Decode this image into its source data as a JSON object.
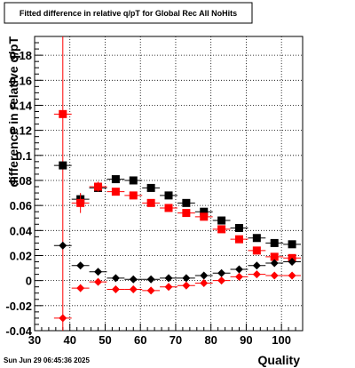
{
  "chart_data": {
    "type": "scatter",
    "title": "Fitted difference in relative q/pT for Global Rec All NoHits",
    "xlabel": "Quality",
    "ylabel": "difference in relative q/pT",
    "xlim": [
      30,
      106
    ],
    "ylim": [
      -0.04,
      0.195
    ],
    "x_ticks": [
      30,
      40,
      50,
      60,
      70,
      80,
      90,
      100
    ],
    "y_ticks": [
      -0.04,
      -0.02,
      0,
      0.02,
      0.04,
      0.06,
      0.08,
      0.1,
      0.12,
      0.14,
      0.16,
      0.18
    ],
    "x_tick_labels": [
      "30",
      "40",
      "50",
      "60",
      "70",
      "80",
      "90",
      "100"
    ],
    "y_tick_labels": [
      "-0.04",
      "-0.02",
      "0",
      "0.02",
      "0.04",
      "0.06",
      "0.08",
      "0.1",
      "0.12",
      "0.14",
      "0.16",
      "0.18"
    ],
    "grid": true,
    "x": [
      38,
      43,
      48,
      53,
      58,
      63,
      68,
      73,
      78,
      83,
      88,
      93,
      98,
      103
    ],
    "x_err": 2.5,
    "vertical_line_x": 38,
    "series": [
      {
        "marker": "square",
        "color": "#000000",
        "values": [
          0.092,
          0.065,
          0.074,
          0.081,
          0.08,
          0.074,
          0.068,
          0.062,
          0.055,
          0.048,
          0.042,
          0.034,
          0.03,
          0.029
        ],
        "errors": [
          0.002,
          0.004,
          0.003,
          0.002,
          0.002,
          0.002,
          0.002,
          0.002,
          0.002,
          0.002,
          0.002,
          0.002,
          0.002,
          0.002
        ]
      },
      {
        "marker": "square",
        "color": "#ff0000",
        "values": [
          0.133,
          0.062,
          0.075,
          0.071,
          0.068,
          0.062,
          0.058,
          0.054,
          0.051,
          0.041,
          0.033,
          0.024,
          0.019,
          0.018
        ],
        "errors": [
          0.002,
          0.008,
          0.004,
          0.002,
          0.002,
          0.002,
          0.002,
          0.002,
          0.002,
          0.002,
          0.002,
          0.002,
          0.002,
          0.002
        ]
      },
      {
        "marker": "diamond",
        "color": "#000000",
        "values": [
          0.028,
          0.012,
          0.007,
          0.002,
          0.001,
          0.001,
          0.002,
          0.002,
          0.004,
          0.006,
          0.009,
          0.012,
          0.014,
          0.015
        ],
        "errors": [
          0.002,
          0.002,
          0.002,
          0.001,
          0.001,
          0.001,
          0.001,
          0.001,
          0.001,
          0.001,
          0.001,
          0.001,
          0.001,
          0.001
        ]
      },
      {
        "marker": "diamond",
        "color": "#ff0000",
        "values": [
          -0.03,
          -0.006,
          -0.001,
          -0.007,
          -0.007,
          -0.008,
          -0.005,
          -0.004,
          -0.002,
          0.0,
          0.003,
          0.005,
          0.004,
          0.004
        ],
        "errors": [
          0.002,
          0.003,
          0.002,
          0.001,
          0.001,
          0.001,
          0.001,
          0.001,
          0.001,
          0.001,
          0.001,
          0.001,
          0.001,
          0.001
        ]
      }
    ]
  },
  "footer": {
    "timestamp": "Sun Jun 29 06:45:36 2025"
  },
  "colors": {
    "frame": "#000000",
    "grid": "#000000",
    "highlight_line": "#ff0000"
  }
}
